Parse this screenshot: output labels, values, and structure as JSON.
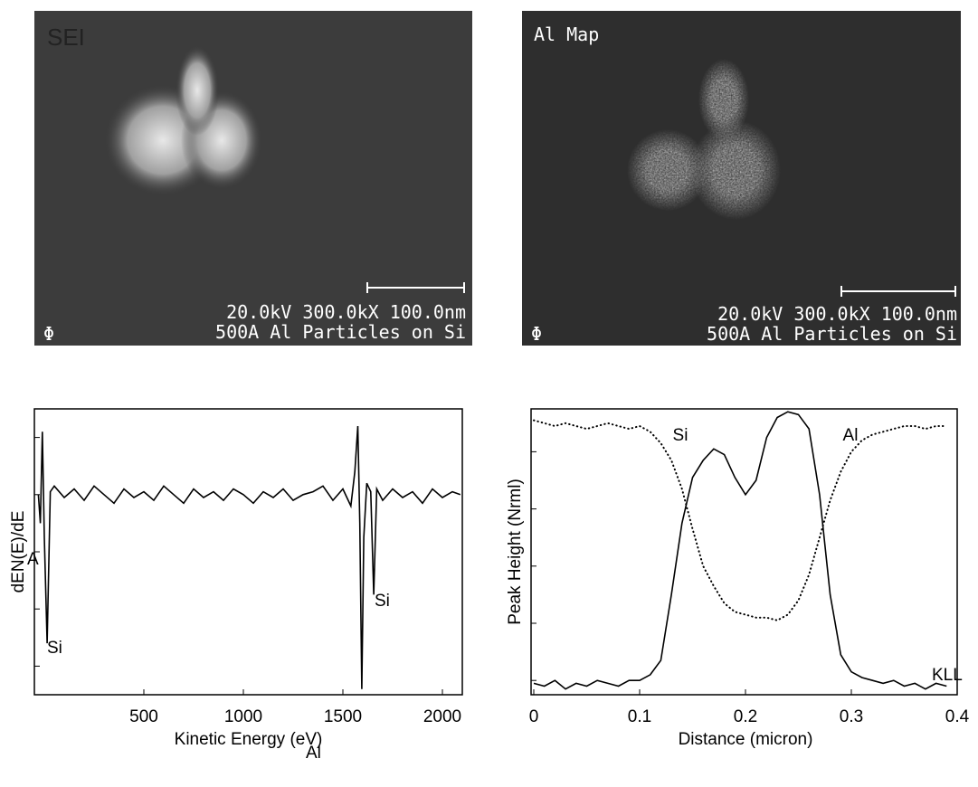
{
  "panels": [
    {
      "label": "SEI",
      "scale": "20.0kV 300.0kX 100.0nm",
      "caption": "500A Al Particles on Si",
      "logo": "Φ"
    },
    {
      "label": "Al Map",
      "scale": "20.0kV 300.0kX 100.0nm",
      "caption": "500A Al Particles on Si",
      "logo": "Φ"
    }
  ],
  "chart_data": [
    {
      "type": "line",
      "x_label": "Kinetic Energy (eV)",
      "y_label": "dEN(E)/dE",
      "xlim": [
        -50,
        2100
      ],
      "xticks": [
        500,
        1000,
        1500,
        2000
      ],
      "ylim": [
        0,
        100
      ],
      "yticks": [
        10,
        30,
        50,
        70,
        90
      ],
      "annotations": [
        "A",
        "Si",
        "Al",
        "Si"
      ],
      "x": [
        -30,
        -20,
        -10,
        0,
        14,
        30,
        50,
        100,
        150,
        200,
        250,
        300,
        350,
        400,
        450,
        500,
        550,
        600,
        650,
        700,
        750,
        800,
        850,
        900,
        950,
        1000,
        1050,
        1100,
        1150,
        1200,
        1250,
        1300,
        1350,
        1400,
        1450,
        1500,
        1540,
        1560,
        1575,
        1585,
        1595,
        1605,
        1620,
        1640,
        1655,
        1670,
        1700,
        1750,
        1800,
        1850,
        1900,
        1950,
        2000,
        2050,
        2090
      ],
      "series": [
        {
          "color": "#000000",
          "values": [
            70,
            60,
            92,
            55,
            18,
            71,
            73,
            69,
            72,
            68,
            73,
            70,
            67,
            72,
            69,
            71,
            68,
            73,
            70,
            67,
            72,
            69,
            71,
            68,
            72,
            70,
            67,
            71,
            69,
            72,
            68,
            70,
            71,
            73,
            68,
            72,
            66,
            78,
            94,
            60,
            2,
            55,
            74,
            71,
            35,
            72,
            68,
            72,
            69,
            71,
            67,
            72,
            69,
            71,
            70
          ]
        }
      ]
    },
    {
      "type": "line",
      "x_label": "Distance (micron)",
      "y_label": "Peak Height (Nrml)",
      "xlim": [
        0,
        0.4
      ],
      "xticks": [
        0,
        0.1,
        0.2,
        0.3,
        0.4
      ],
      "ylim": [
        0,
        100
      ],
      "yticks": [
        5,
        25,
        45,
        65,
        85
      ],
      "annotations": [
        "KLL"
      ],
      "x": [
        0,
        0.01,
        0.02,
        0.03,
        0.04,
        0.05,
        0.06,
        0.07,
        0.08,
        0.09,
        0.1,
        0.11,
        0.12,
        0.13,
        0.14,
        0.15,
        0.16,
        0.17,
        0.18,
        0.19,
        0.2,
        0.21,
        0.22,
        0.23,
        0.24,
        0.25,
        0.26,
        0.27,
        0.28,
        0.29,
        0.3,
        0.31,
        0.32,
        0.33,
        0.34,
        0.35,
        0.36,
        0.37,
        0.38,
        0.39
      ],
      "series": [
        {
          "name": "Al",
          "color": "#000000",
          "style": "solid",
          "values": [
            4,
            3,
            5,
            2,
            4,
            3,
            5,
            4,
            3,
            5,
            5,
            7,
            12,
            35,
            60,
            76,
            82,
            86,
            84,
            76,
            70,
            75,
            90,
            97,
            99,
            98,
            93,
            70,
            35,
            14,
            8,
            6,
            5,
            4,
            5,
            3,
            4,
            2,
            4,
            3
          ]
        },
        {
          "name": "Si",
          "color": "#000000",
          "style": "dotted",
          "values": [
            96,
            95,
            94,
            95,
            94,
            93,
            94,
            95,
            94,
            93,
            94,
            92,
            88,
            82,
            72,
            58,
            45,
            38,
            32,
            29,
            28,
            27,
            27,
            26,
            28,
            33,
            42,
            55,
            68,
            78,
            85,
            89,
            91,
            92,
            93,
            94,
            94,
            93,
            94,
            94
          ]
        }
      ]
    }
  ]
}
